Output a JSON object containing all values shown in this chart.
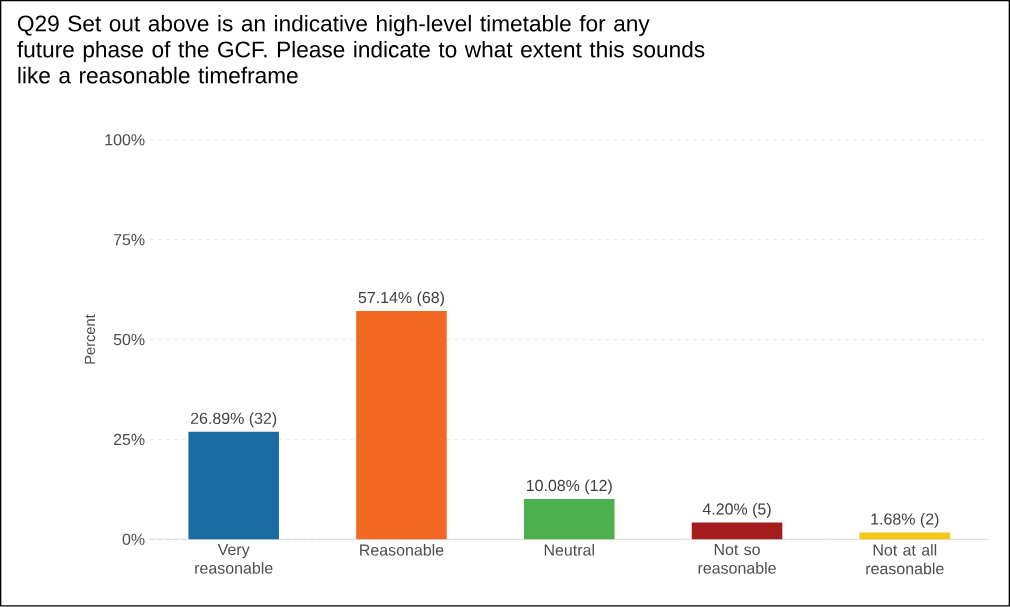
{
  "chart_data": {
    "type": "bar",
    "title": "Q29 Set out above is an indicative high-level timetable for any future phase of the GCF. Please indicate to what extent this sounds like a reasonable timeframe",
    "ylabel": "Percent",
    "categories": [
      "Very reasonable",
      "Reasonable",
      "Neutral",
      "Not so reasonable",
      "Not at all reasonable"
    ],
    "values": [
      26.89,
      57.14,
      10.08,
      4.2,
      1.68
    ],
    "value_labels": [
      "26.89% (32)",
      "57.14% (68)",
      "10.08% (12)",
      "4.20% (5)",
      "1.68% (2)"
    ],
    "colors": [
      "#1a6aa3",
      "#f26822",
      "#4caf50",
      "#a51c1c",
      "#f5c518"
    ],
    "ylim": [
      0,
      100
    ],
    "yticks": [
      {
        "value": 0,
        "label": "0%"
      },
      {
        "value": 25,
        "label": "25%"
      },
      {
        "value": 50,
        "label": "50%"
      },
      {
        "value": 75,
        "label": "75%"
      },
      {
        "value": 100,
        "label": "100%"
      }
    ],
    "grid": "y"
  }
}
